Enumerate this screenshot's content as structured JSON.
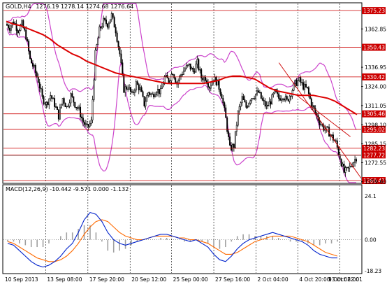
{
  "chart_data": {
    "type": "candlestick",
    "symbol": "GOLD,H4",
    "header_values": "1276.19 1278.14 1274.68 1276.64",
    "ylim": [
      1259,
      1380
    ],
    "y_ticks": [
      "1375.23",
      "1362.85",
      "1350.43",
      "1336.95",
      "1324.00",
      "1311.05",
      "1298.10",
      "1285.15",
      "1272.55",
      "1259.60"
    ],
    "x_ticks": [
      "10 Sep 2013",
      "13 Sep 08:00",
      "17 Sep 20:00",
      "20 Sep 12:00",
      "25 Sep 00:00",
      "27 Sep 16:00",
      "2 Oct 04:00",
      "4 Oct 20:00",
      "9 Oct 08:00",
      "13 Oct 22:01"
    ],
    "x_tick_fractions": [
      0.0,
      0.118,
      0.236,
      0.354,
      0.47,
      0.588,
      0.706,
      0.823,
      0.94,
      1.0
    ],
    "horizontal_levels": [
      {
        "value": 1375.23,
        "label": "1375.23"
      },
      {
        "value": 1350.43,
        "label": "1350.43"
      },
      {
        "value": 1330.42,
        "label": "1330.42"
      },
      {
        "value": 1305.46,
        "label": "1305.46"
      },
      {
        "value": 1295.02,
        "label": "1295.02"
      },
      {
        "value": 1282.23,
        "label": "1282.23"
      },
      {
        "value": 1277.72,
        "label": "1277.72"
      },
      {
        "value": 1260.41,
        "label": "1260.41"
      }
    ],
    "level_color": "#cc0000",
    "current_price": "1277.72",
    "ma_color": "#dd0000",
    "bands_color": "#cc44cc",
    "close_path": [
      1366,
      1364,
      1368,
      1362,
      1366,
      1358,
      1342,
      1336,
      1328,
      1316,
      1312,
      1318,
      1312,
      1304,
      1316,
      1310,
      1318,
      1312,
      1308,
      1300,
      1296,
      1300,
      1346,
      1362,
      1368,
      1366,
      1372,
      1362,
      1346,
      1322,
      1324,
      1318,
      1326,
      1322,
      1312,
      1320,
      1318,
      1322,
      1320,
      1330,
      1328,
      1334,
      1326,
      1332,
      1336,
      1338,
      1334,
      1340,
      1330,
      1330,
      1324,
      1330,
      1326,
      1318,
      1302,
      1282,
      1284,
      1306,
      1316,
      1310,
      1316,
      1318,
      1320,
      1314,
      1310,
      1314,
      1320,
      1316,
      1318,
      1314,
      1320,
      1326,
      1328,
      1324,
      1322,
      1312,
      1306,
      1300,
      1296,
      1294,
      1290,
      1286,
      1276,
      1266,
      1268,
      1272,
      1276
    ],
    "ma_path": [
      1368,
      1366,
      1365,
      1363,
      1361,
      1359,
      1356,
      1352,
      1349,
      1346,
      1344,
      1341,
      1339,
      1337,
      1335,
      1333,
      1332,
      1331,
      1330,
      1329,
      1328,
      1327,
      1326,
      1326,
      1326,
      1326,
      1326,
      1326,
      1327,
      1328,
      1330,
      1331,
      1331,
      1330,
      1329,
      1326,
      1323,
      1321,
      1320,
      1319,
      1318,
      1318,
      1318,
      1317,
      1316,
      1314,
      1311,
      1308,
      1305
    ],
    "macd": {
      "label": "MACD(12,26,9) -10.442 -9.571 0.000 -1.132",
      "ylim": [
        -18.23,
        24.1
      ],
      "y_ticks": [
        "24.1",
        "0.00",
        "-18.23"
      ],
      "main_color": "#0022cc",
      "signal_color": "#ff6a00",
      "hist_color": "#a0a0a0",
      "main": [
        -2,
        -3,
        -6,
        -9,
        -12,
        -14,
        -15,
        -14,
        -12,
        -9,
        -5,
        -2,
        4,
        11,
        15,
        14,
        10,
        4,
        0,
        -2,
        -3,
        -2,
        -1,
        0,
        1,
        2,
        3,
        3,
        2,
        1,
        0,
        -1,
        0,
        -2,
        -4,
        -8,
        -11,
        -12,
        -9,
        -5,
        -2,
        0,
        1,
        2,
        3,
        4,
        3,
        2,
        1,
        0,
        -1,
        -3,
        -6,
        -8,
        -9,
        -10,
        -10
      ],
      "signal": [
        -1,
        -2,
        -4,
        -6,
        -8,
        -10,
        -11,
        -12,
        -12,
        -11,
        -9,
        -6,
        -2,
        3,
        7,
        10,
        11,
        10,
        7,
        4,
        2,
        1,
        0,
        0,
        1,
        2,
        2,
        2,
        2,
        1,
        1,
        0,
        0,
        -1,
        -2,
        -4,
        -6,
        -8,
        -8,
        -7,
        -5,
        -3,
        -1,
        0,
        1,
        2,
        2,
        2,
        2,
        1,
        0,
        -1,
        -3,
        -5,
        -7,
        -8,
        -9
      ],
      "hist": [
        -1,
        -1,
        -2,
        -3,
        -4,
        -4,
        -4,
        -2,
        0,
        2,
        4,
        4,
        6,
        8,
        8,
        4,
        -1,
        -6,
        -7,
        -6,
        -5,
        -3,
        -1,
        0,
        0,
        0,
        1,
        1,
        0,
        0,
        -1,
        -1,
        0,
        -1,
        -2,
        -4,
        -5,
        -4,
        -1,
        2,
        3,
        3,
        2,
        2,
        2,
        2,
        1,
        0,
        -1,
        -1,
        -1,
        -2,
        -3,
        -3,
        -2,
        -2,
        -1
      ]
    }
  }
}
